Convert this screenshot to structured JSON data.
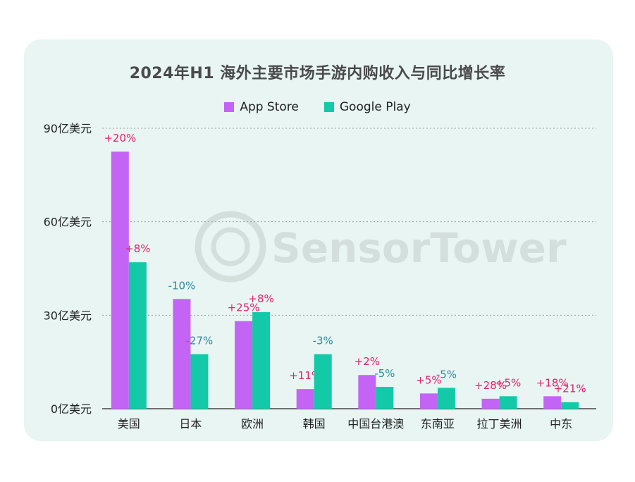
{
  "chart_data": {
    "type": "bar",
    "title": "2024年H1 海外主要市场手游内购收入与同比增长率",
    "categories": [
      "美国",
      "日本",
      "欧洲",
      "韩国",
      "中国台港澳",
      "东南亚",
      "拉丁美洲",
      "中东"
    ],
    "series": [
      {
        "name": "App Store",
        "color": "#c464f5",
        "values": [
          82.5,
          35.2,
          28.1,
          6.3,
          10.8,
          4.9,
          3.2,
          4.0
        ],
        "growth_labels": [
          "+20%",
          "-10%",
          "+25%",
          "+11%",
          "+2%",
          "+5%",
          "+28%",
          "+18%"
        ]
      },
      {
        "name": "Google Play",
        "color": "#13c9a8",
        "values": [
          47.0,
          17.5,
          31.0,
          17.5,
          7.0,
          6.7,
          4.0,
          2.1
        ],
        "growth_labels": [
          "+8%",
          "-27%",
          "+8%",
          "-3%",
          "-5%",
          "-5%",
          "+5%",
          "+21%"
        ]
      }
    ],
    "ylim": [
      0,
      90
    ],
    "yticks": [
      {
        "value": 0,
        "label": "0亿美元"
      },
      {
        "value": 30,
        "label": "30亿美元"
      },
      {
        "value": 60,
        "label": "60亿美元"
      },
      {
        "value": 90,
        "label": "90亿美元"
      }
    ],
    "xlabel": "",
    "ylabel": "",
    "grid": true,
    "legend_position": "top-center",
    "positive_label_color": "#e0226e",
    "negative_label_color": "#2a8aa0"
  },
  "watermark": "SensorTower"
}
